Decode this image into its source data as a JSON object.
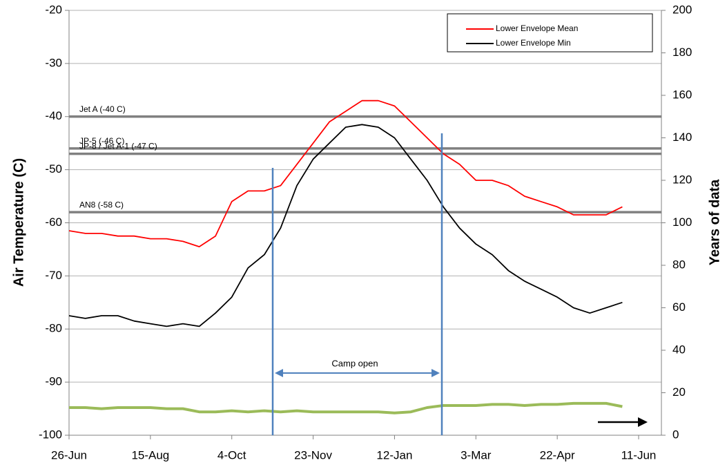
{
  "chart_data": {
    "type": "line",
    "y_label": "Air Temperature (C)",
    "y2_label": "Years of data",
    "categories": [
      "26-Jun",
      null,
      null,
      null,
      null,
      "15-Aug",
      null,
      null,
      null,
      null,
      "4-Oct",
      null,
      null,
      null,
      null,
      "23-Nov",
      null,
      null,
      null,
      null,
      "12-Jan",
      null,
      null,
      null,
      null,
      "3-Mar",
      null,
      null,
      null,
      null,
      "22-Apr",
      null,
      null,
      null,
      null,
      "11-Jun"
    ],
    "series": [
      {
        "name": "Lower Envelope Mean",
        "color": "#ff0000",
        "values": [
          -61.5,
          -62,
          -62,
          -62.5,
          -62.5,
          -63,
          -63,
          -63.5,
          -64.5,
          -62.5,
          -56,
          -54,
          -54,
          -53,
          -49,
          -45,
          -41,
          -39,
          -37,
          -37,
          -38,
          -41,
          -44,
          -47,
          -49,
          -52,
          -52,
          -53,
          -55,
          -56,
          -57,
          -58.5,
          -58.5,
          -58.5,
          -57,
          null
        ]
      },
      {
        "name": "Lower Envelope Min",
        "color": "#000000",
        "values": [
          -77.5,
          -78,
          -77.5,
          -77.5,
          -78.5,
          -79,
          -79.5,
          -79,
          -79.5,
          -77,
          -74,
          -68.5,
          -66,
          -61,
          -53,
          -48,
          -45,
          -42,
          -41.5,
          -42,
          -44,
          -48,
          -52,
          -57,
          -61,
          -64,
          -66,
          -69,
          -71,
          -72.5,
          -74,
          -76,
          -77,
          -76,
          -75,
          null
        ]
      },
      {
        "color": "#9bbb59",
        "axis": "y2",
        "values": [
          13,
          13,
          12.5,
          13,
          13,
          13,
          12.5,
          12.5,
          11,
          11,
          11.5,
          11,
          11.5,
          11,
          11.5,
          11,
          11,
          11,
          11,
          11,
          10.5,
          11,
          13,
          14,
          14,
          14,
          14.5,
          14.5,
          14,
          14.5,
          14.5,
          15,
          15,
          15,
          13.5,
          null
        ]
      }
    ],
    "reference_lines": [
      {
        "label": "Jet A (-40 C)",
        "value": -40
      },
      {
        "label": "JP-5 (-46 C)",
        "value": -46
      },
      {
        "label": "JP-8 / Jet A-1 (-47 C)",
        "value": -47
      },
      {
        "label": "AN8 (-58 C)",
        "value": -58
      }
    ],
    "annotation": "Camp open",
    "ylim": [
      -100,
      -20
    ],
    "yticks": [
      -100,
      -90,
      -80,
      -70,
      -60,
      -50,
      -40,
      -30,
      -20
    ],
    "y2lim": [
      0,
      200
    ],
    "y2ticks": [
      0,
      20,
      40,
      60,
      80,
      100,
      120,
      140,
      160,
      180,
      200
    ],
    "grid": true,
    "legend": "upper right"
  }
}
